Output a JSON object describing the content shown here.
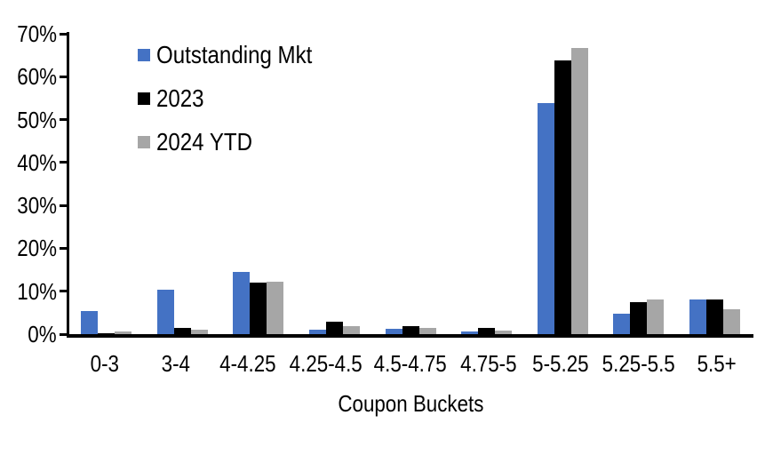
{
  "chart_data": {
    "type": "bar",
    "title": "",
    "xlabel": "Coupon Buckets",
    "ylabel": "",
    "ylim": [
      0,
      70
    ],
    "ytick_step": 10,
    "ytick_labels": [
      "70%",
      "60%",
      "50%",
      "40%",
      "30%",
      "20%",
      "10%",
      "0%"
    ],
    "grid": false,
    "legend_position": "top-left",
    "axis_color": "#000000",
    "categories": [
      "0-3",
      "3-4",
      "4-4.25",
      "4.25-4.5",
      "4.5-4.75",
      "4.75-5",
      "5-5.25",
      "5.25-5.5",
      "5.5+"
    ],
    "series": [
      {
        "name": "Outstanding Mkt",
        "color": "#4472C4",
        "values": [
          5.4,
          10.4,
          14.4,
          1.0,
          1.2,
          0.6,
          53.9,
          4.7,
          8.0
        ]
      },
      {
        "name": "2023",
        "color": "#000000",
        "values": [
          0.3,
          1.5,
          12.1,
          3.0,
          1.9,
          1.4,
          63.8,
          7.5,
          8.0
        ]
      },
      {
        "name": "2024 YTD",
        "color": "#A6A6A6",
        "values": [
          0.6,
          1.0,
          12.3,
          1.8,
          1.5,
          0.8,
          66.7,
          8.1,
          5.9
        ]
      }
    ]
  }
}
